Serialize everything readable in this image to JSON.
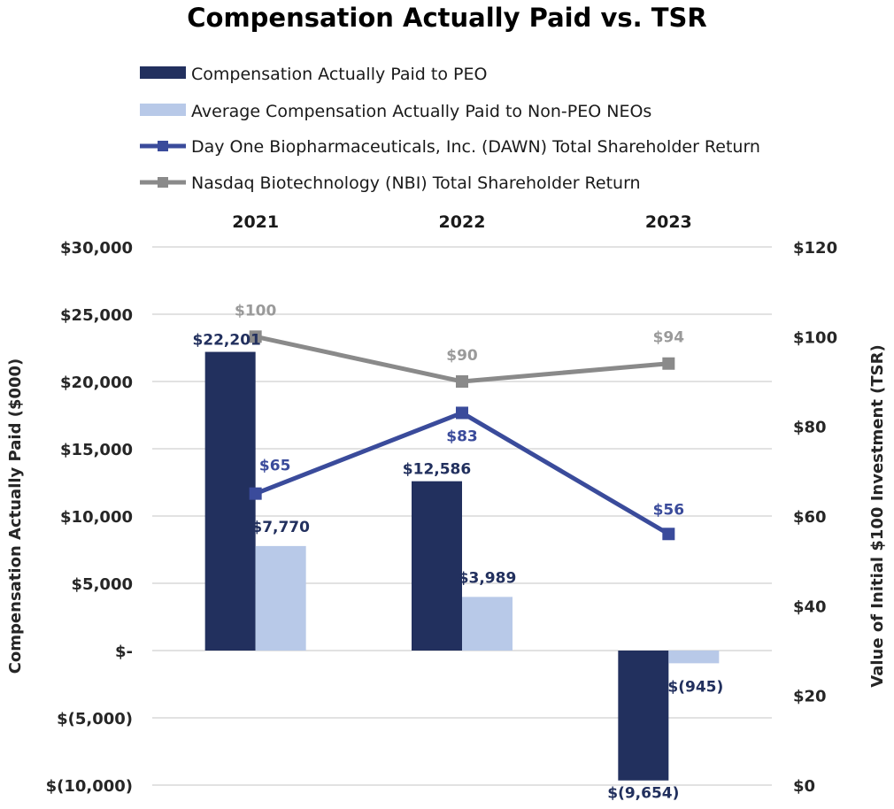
{
  "colors": {
    "peo_bar": "#22305e",
    "neo_bar": "#b8c9e8",
    "dawn_line": "#3a4b9b",
    "nbi_line": "#8a8a8a",
    "nbi_label": "#9a9a9a",
    "grid": "#d9d9d9"
  },
  "chart_data": {
    "type": "bar",
    "title": "Compensation Actually Paid vs. TSR",
    "categories": [
      "2021",
      "2022",
      "2023"
    ],
    "ylabel": "Compensation Actually Paid ($000)",
    "y2label": "Value of Initial $100 Investment (TSR)",
    "ylim": [
      -10000,
      30000
    ],
    "y2lim": [
      0,
      120
    ],
    "yticks": [
      30000,
      25000,
      20000,
      15000,
      10000,
      5000,
      0,
      -5000,
      -10000
    ],
    "ytick_labels": [
      "$30,000",
      "$25,000",
      "$20,000",
      "$15,000",
      "$10,000",
      "$5,000",
      "$-",
      "$(5,000)",
      "$(10,000)"
    ],
    "y2ticks": [
      120,
      100,
      80,
      60,
      40,
      20,
      0
    ],
    "y2tick_labels": [
      "$120",
      "$100",
      "$80",
      "$60",
      "$40",
      "$20",
      "$0"
    ],
    "legend_position": "top",
    "series": [
      {
        "name": "Compensation Actually Paid to PEO",
        "kind": "bar",
        "axis": "left",
        "values": [
          22201,
          12586,
          -9654
        ],
        "labels": [
          "$22,201",
          "$12,586",
          "$(9,654)"
        ]
      },
      {
        "name": "Average Compensation Actually Paid to Non-PEO NEOs",
        "kind": "bar",
        "axis": "left",
        "values": [
          7770,
          3989,
          -945
        ],
        "labels": [
          "$7,770",
          "$3,989",
          "$(945)"
        ]
      },
      {
        "name": "Day One Biopharmaceuticals, Inc. (DAWN) Total Shareholder Return",
        "kind": "line",
        "axis": "right",
        "values": [
          65,
          83,
          56
        ],
        "labels": [
          "$65",
          "$83",
          "$56"
        ]
      },
      {
        "name": "Nasdaq Biotechnology (NBI) Total Shareholder Return",
        "kind": "line",
        "axis": "right",
        "values": [
          100,
          90,
          94
        ],
        "labels": [
          "$100",
          "$90",
          "$94"
        ]
      }
    ]
  }
}
